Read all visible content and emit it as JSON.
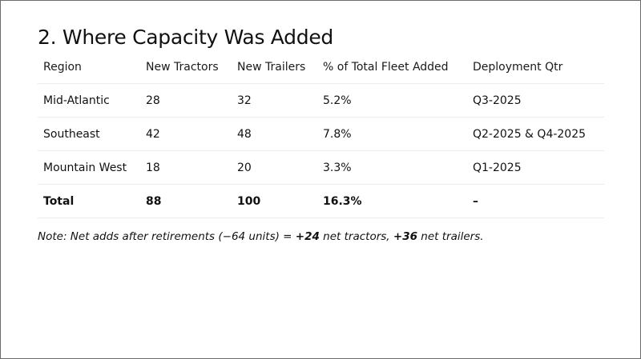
{
  "slide": {
    "title": "2. Where Capacity Was Added"
  },
  "table": {
    "headers": {
      "region": "Region",
      "new_tractors": "New Tractors",
      "new_trailers": "New Trailers",
      "pct_fleet": "% of Total Fleet Added",
      "deployment_qtr": "Deployment Qtr"
    },
    "rows": [
      {
        "region": "Mid-Atlantic",
        "new_tractors": "28",
        "new_trailers": "32",
        "pct_fleet": "5.2%",
        "deployment_qtr": "Q3-2025"
      },
      {
        "region": "Southeast",
        "new_tractors": "42",
        "new_trailers": "48",
        "pct_fleet": "7.8%",
        "deployment_qtr": "Q2-2025 & Q4-2025"
      },
      {
        "region": "Mountain West",
        "new_tractors": "18",
        "new_trailers": "20",
        "pct_fleet": "3.3%",
        "deployment_qtr": "Q1-2025"
      }
    ],
    "total": {
      "region": "Total",
      "new_tractors": "88",
      "new_trailers": "100",
      "pct_fleet": "16.3%",
      "deployment_qtr": "–"
    }
  },
  "note": {
    "prefix": "Note: Net adds after retirements (−64 units) = ",
    "tractors_value": "+24",
    "tractors_label": " net tractors, ",
    "trailers_value": "+36",
    "trailers_label": " net trailers."
  }
}
